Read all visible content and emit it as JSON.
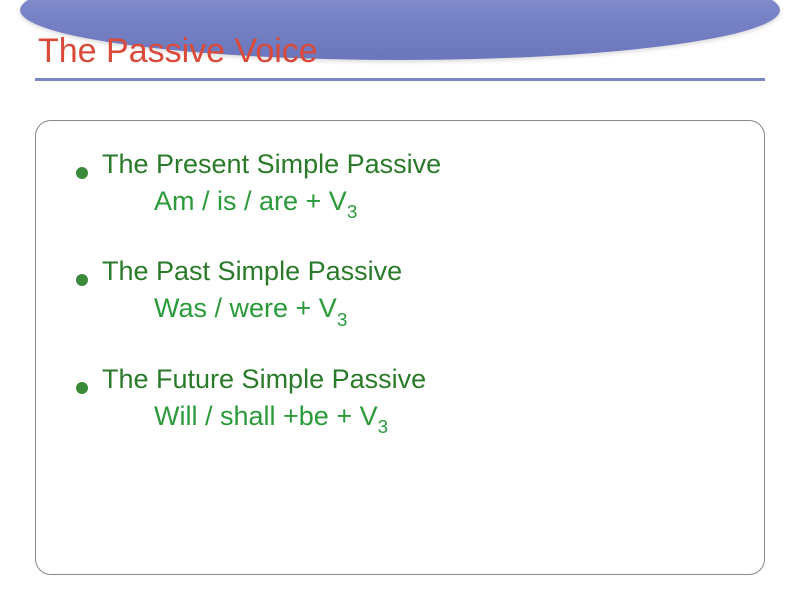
{
  "slide": {
    "title": "The Passive Voice",
    "title_color": "#d94a3a",
    "title_fontsize": 34,
    "oval_gradient_top": "#9ca3d9",
    "oval_gradient_bottom": "#6b76bc",
    "underline_color": "#7a85c8",
    "box_border_color": "#888888",
    "box_border_radius": 16,
    "background_color": "#ffffff",
    "bullets": [
      {
        "heading": "The Present Simple Passive",
        "formula_prefix": "Am / is / are + V",
        "formula_sub": "3"
      },
      {
        "heading": "The Past Simple Passive",
        "formula_prefix": "Was / were + V",
        "formula_sub": "3"
      },
      {
        "heading": "The Future Simple Passive",
        "formula_prefix": "Will / shall +be + V",
        "formula_sub": "3"
      }
    ],
    "bullet_dot_color": "#3a8a3a",
    "heading_color": "#2a7a2a",
    "formula_color": "#2a9a3a",
    "body_fontsize": 27
  }
}
